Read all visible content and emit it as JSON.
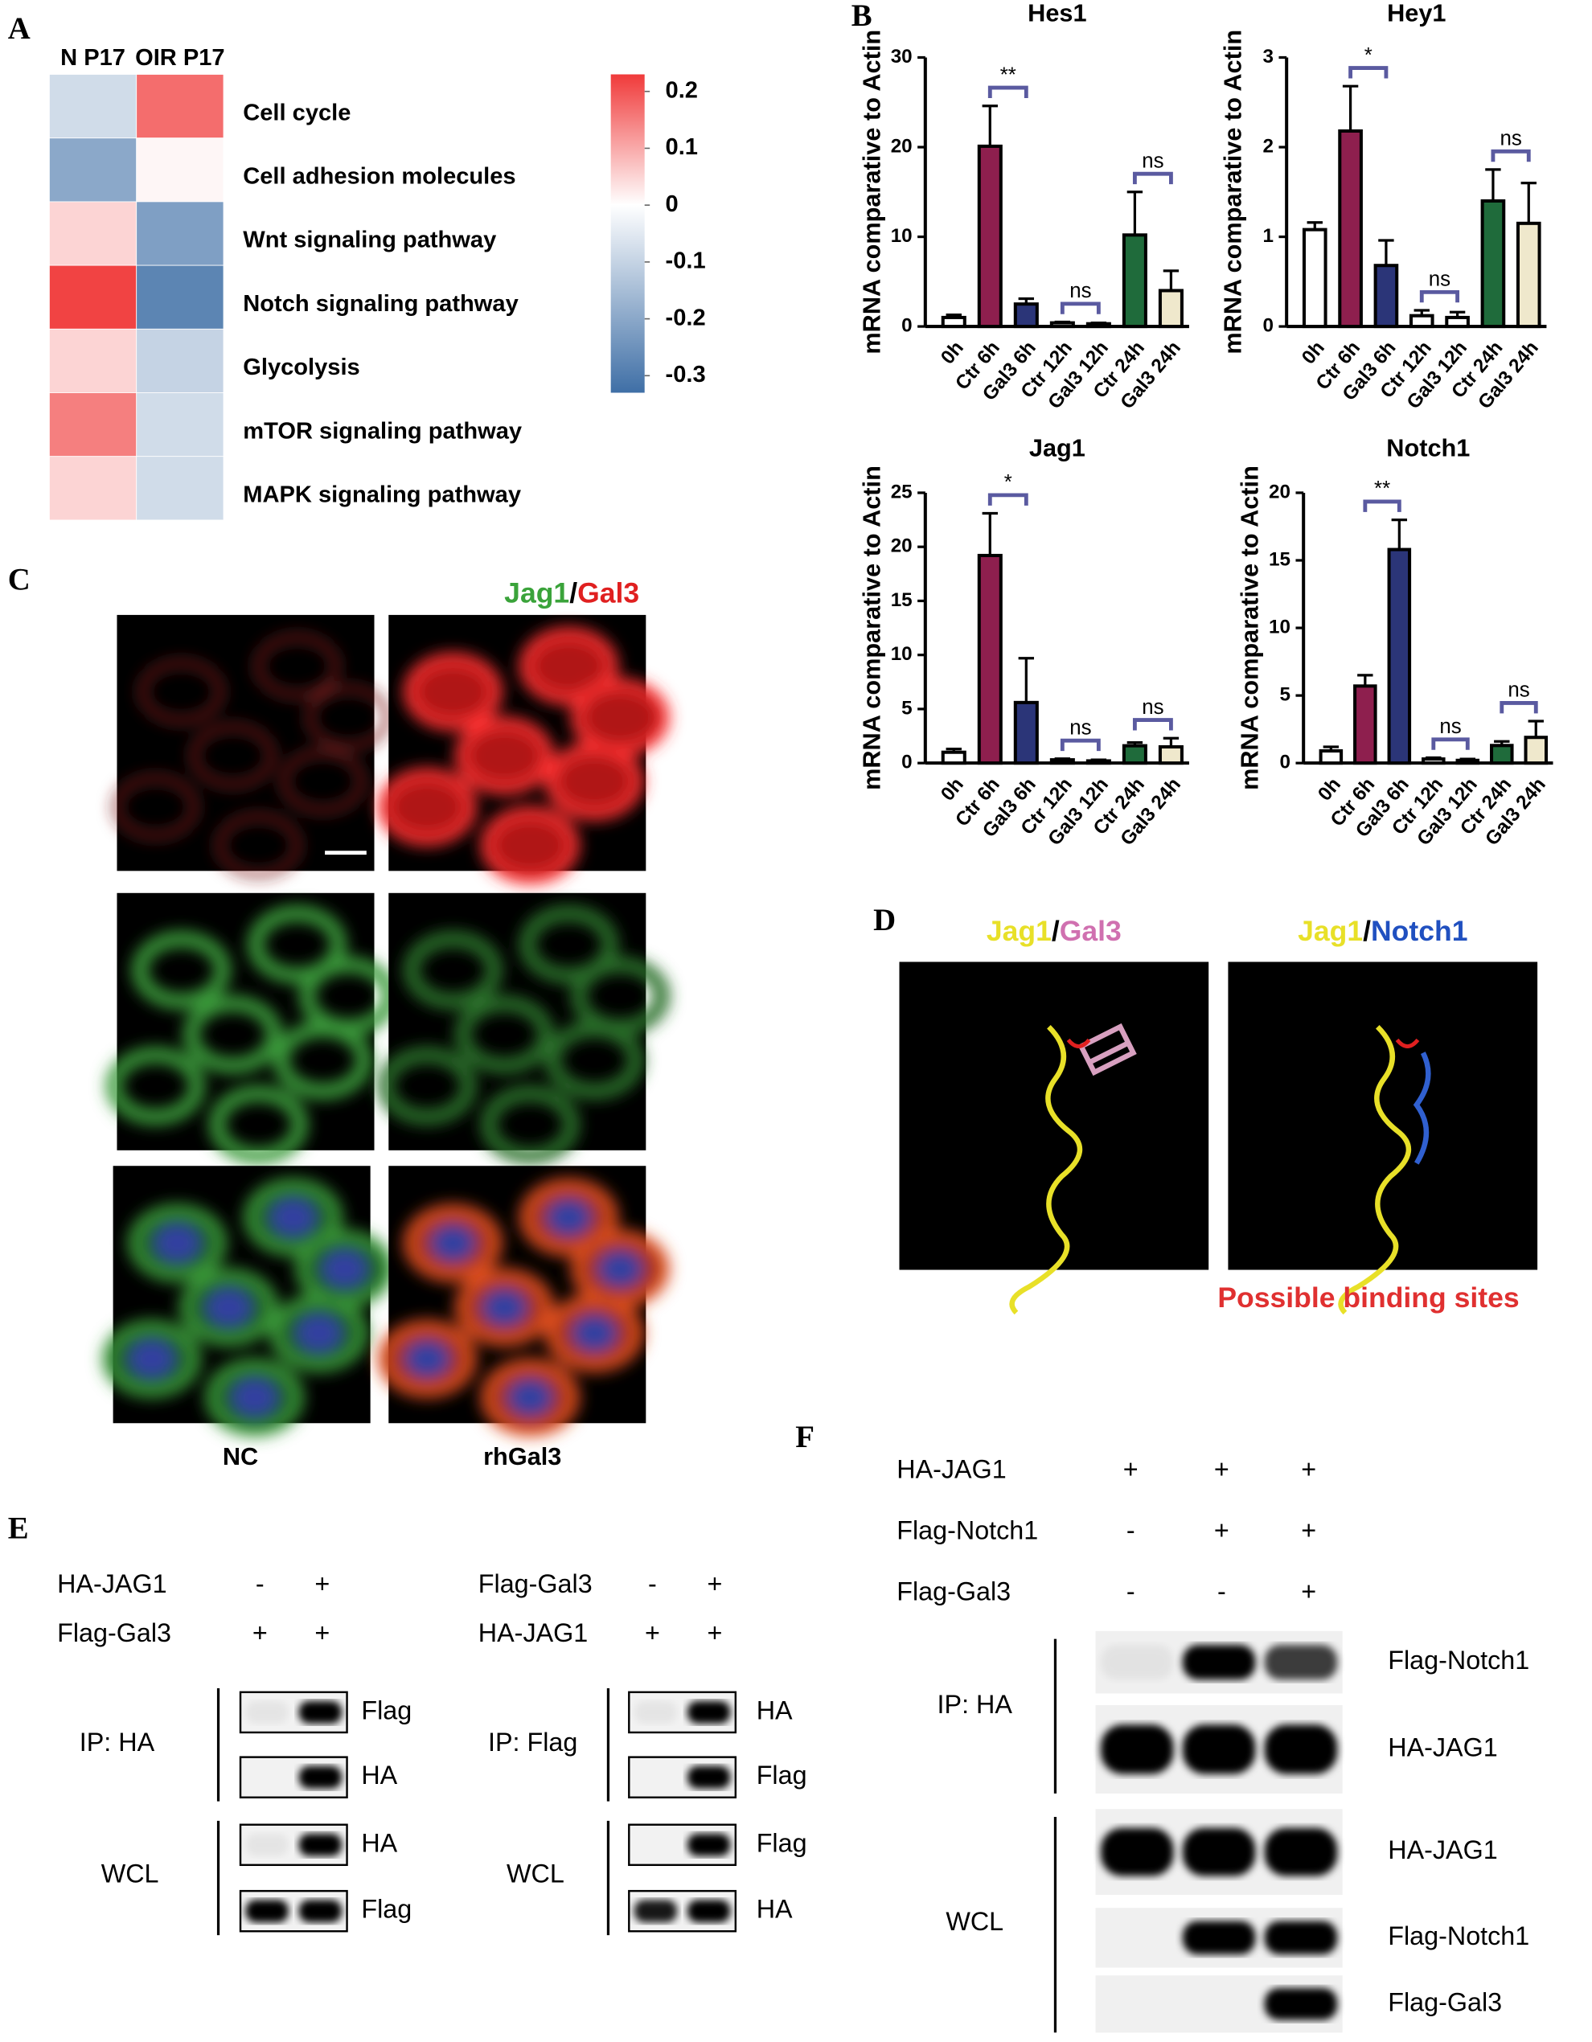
{
  "chart_data": [
    {
      "type": "heatmap",
      "columns": [
        "N P17",
        "OIR P17"
      ],
      "rows": [
        "Cell cycle",
        "Cell adhesion molecules",
        "Wnt signaling pathway",
        "Notch signaling pathway",
        "Glycolysis",
        "mTOR signaling pathway",
        "MAPK signaling pathway"
      ],
      "values": [
        [
          -0.08,
          0.17
        ],
        [
          -0.2,
          0.01
        ],
        [
          0.05,
          -0.22
        ],
        [
          0.22,
          -0.28
        ],
        [
          0.05,
          -0.1
        ],
        [
          0.15,
          -0.08
        ],
        [
          0.05,
          -0.08
        ]
      ],
      "zlim": [
        -0.33,
        0.23
      ],
      "zticks": [
        0.2,
        0.1,
        0,
        -0.1,
        -0.2,
        -0.3
      ],
      "colors": {
        "low": "#3f6fa6",
        "mid": "#ffffff",
        "high": "#f03a3a"
      }
    },
    {
      "type": "bar",
      "title": "Hes1",
      "ylabel": "mRNA comparative to Actin",
      "categories": [
        "0h",
        "Ctr 6h",
        "Gal3 6h",
        "Ctr 12h",
        "Gal3 12h",
        "Ctr 24h",
        "Gal3 24h"
      ],
      "values": [
        1,
        20.1,
        2.5,
        0.4,
        0.3,
        10.2,
        4
      ],
      "errors": [
        0.3,
        4.5,
        0.6,
        0.1,
        0.1,
        4.8,
        2.2
      ],
      "colors": [
        "#ffffff",
        "#8e1f4e",
        "#2b3578",
        "#ffffff",
        "#ffffff",
        "#1f6b3b",
        "#efe8cc"
      ],
      "ylim": [
        0,
        30
      ],
      "yticks": [
        0,
        10,
        20,
        30
      ],
      "annotations": [
        {
          "pair": [
            1,
            2
          ],
          "label": "**"
        },
        {
          "pair": [
            3,
            4
          ],
          "label": "ns"
        },
        {
          "pair": [
            5,
            6
          ],
          "label": "ns"
        }
      ]
    },
    {
      "type": "bar",
      "title": "Hey1",
      "ylabel": "mRNA comparative to Actin",
      "categories": [
        "0h",
        "Ctr 6h",
        "Gal3 6h",
        "Ctr 12h",
        "Gal3 12h",
        "Ctr 24h",
        "Gal3 24h"
      ],
      "values": [
        1.08,
        2.18,
        0.68,
        0.12,
        0.1,
        1.4,
        1.15
      ],
      "errors": [
        0.08,
        0.5,
        0.28,
        0.06,
        0.06,
        0.35,
        0.45
      ],
      "colors": [
        "#ffffff",
        "#8e1f4e",
        "#2b3578",
        "#ffffff",
        "#ffffff",
        "#1f6b3b",
        "#efe8cc"
      ],
      "ylim": [
        0,
        3
      ],
      "yticks": [
        0,
        1,
        2,
        3
      ],
      "annotations": [
        {
          "pair": [
            1,
            2
          ],
          "label": "*"
        },
        {
          "pair": [
            3,
            4
          ],
          "label": "ns"
        },
        {
          "pair": [
            5,
            6
          ],
          "label": "ns"
        }
      ]
    },
    {
      "type": "bar",
      "title": "Jag1",
      "ylabel": "mRNA comparative to Actin",
      "categories": [
        "0h",
        "Ctr 6h",
        "Gal3 6h",
        "Ctr 12h",
        "Gal3 12h",
        "Ctr 24h",
        "Gal3 24h"
      ],
      "values": [
        1,
        19.2,
        5.6,
        0.3,
        0.2,
        1.6,
        1.5
      ],
      "errors": [
        0.3,
        3.9,
        4.1,
        0.1,
        0.1,
        0.3,
        0.8
      ],
      "colors": [
        "#ffffff",
        "#8e1f4e",
        "#2b3578",
        "#ffffff",
        "#ffffff",
        "#1f6b3b",
        "#efe8cc"
      ],
      "ylim": [
        0,
        25
      ],
      "yticks": [
        0,
        5,
        10,
        15,
        20,
        25
      ],
      "annotations": [
        {
          "pair": [
            1,
            2
          ],
          "label": "*"
        },
        {
          "pair": [
            3,
            4
          ],
          "label": "ns"
        },
        {
          "pair": [
            5,
            6
          ],
          "label": "ns"
        }
      ]
    },
    {
      "type": "bar",
      "title": "Notch1",
      "ylabel": "mRNA comparative to Actin",
      "categories": [
        "0h",
        "Ctr 6h",
        "Gal3 6h",
        "Ctr 12h",
        "Gal3 12h",
        "Ctr 24h",
        "Gal3 24h"
      ],
      "values": [
        0.9,
        5.7,
        15.8,
        0.3,
        0.2,
        1.3,
        1.9
      ],
      "errors": [
        0.3,
        0.8,
        2.2,
        0.1,
        0.1,
        0.3,
        1.2
      ],
      "colors": [
        "#ffffff",
        "#8e1f4e",
        "#2b3578",
        "#ffffff",
        "#ffffff",
        "#1f6b3b",
        "#efe8cc"
      ],
      "ylim": [
        0,
        20
      ],
      "yticks": [
        0,
        5,
        10,
        15,
        20
      ],
      "annotations": [
        {
          "pair": [
            1,
            2
          ],
          "label": "**"
        },
        {
          "pair": [
            3,
            4
          ],
          "label": "ns"
        },
        {
          "pair": [
            5,
            6
          ],
          "label": "ns"
        }
      ]
    }
  ],
  "panel_labels": [
    "A",
    "B",
    "C",
    "D",
    "E",
    "F"
  ],
  "panel_c": {
    "title": [
      "Jag1",
      "/",
      "Gal3"
    ],
    "conditions": [
      "NC",
      "rhGal3"
    ]
  },
  "panel_d": {
    "titles": [
      [
        "Jag1",
        "/",
        "Gal3"
      ],
      [
        "Jag1",
        "/",
        "Notch1"
      ]
    ],
    "caption": "Possible binding sites"
  },
  "panel_e": {
    "blots": [
      {
        "rows": [
          {
            "label": "HA-JAG1",
            "marks": [
              "-",
              "+"
            ]
          },
          {
            "label": "Flag-Gal3",
            "marks": [
              "+",
              "+"
            ]
          }
        ],
        "groups": [
          {
            "label": "IP: HA",
            "bands": [
              "Flag",
              "HA"
            ]
          },
          {
            "label": "WCL",
            "bands": [
              "HA",
              "Flag"
            ]
          }
        ]
      },
      {
        "rows": [
          {
            "label": "Flag-Gal3",
            "marks": [
              "-",
              "+"
            ]
          },
          {
            "label": "HA-JAG1",
            "marks": [
              "+",
              "+"
            ]
          }
        ],
        "groups": [
          {
            "label": "IP: Flag",
            "bands": [
              "HA",
              "Flag"
            ]
          },
          {
            "label": "WCL",
            "bands": [
              "Flag",
              "HA"
            ]
          }
        ]
      }
    ]
  },
  "panel_f": {
    "rows": [
      {
        "label": "HA-JAG1",
        "marks": [
          "+",
          "+",
          "+"
        ]
      },
      {
        "label": "Flag-Notch1",
        "marks": [
          "-",
          "+",
          "+"
        ]
      },
      {
        "label": "Flag-Gal3",
        "marks": [
          "-",
          "-",
          "+"
        ]
      }
    ],
    "groups": [
      {
        "label": "IP: HA",
        "bands": [
          "Flag-Notch1",
          "HA-JAG1"
        ]
      },
      {
        "label": "WCL",
        "bands": [
          "HA-JAG1",
          "Flag-Notch1",
          "Flag-Gal3"
        ]
      }
    ]
  }
}
